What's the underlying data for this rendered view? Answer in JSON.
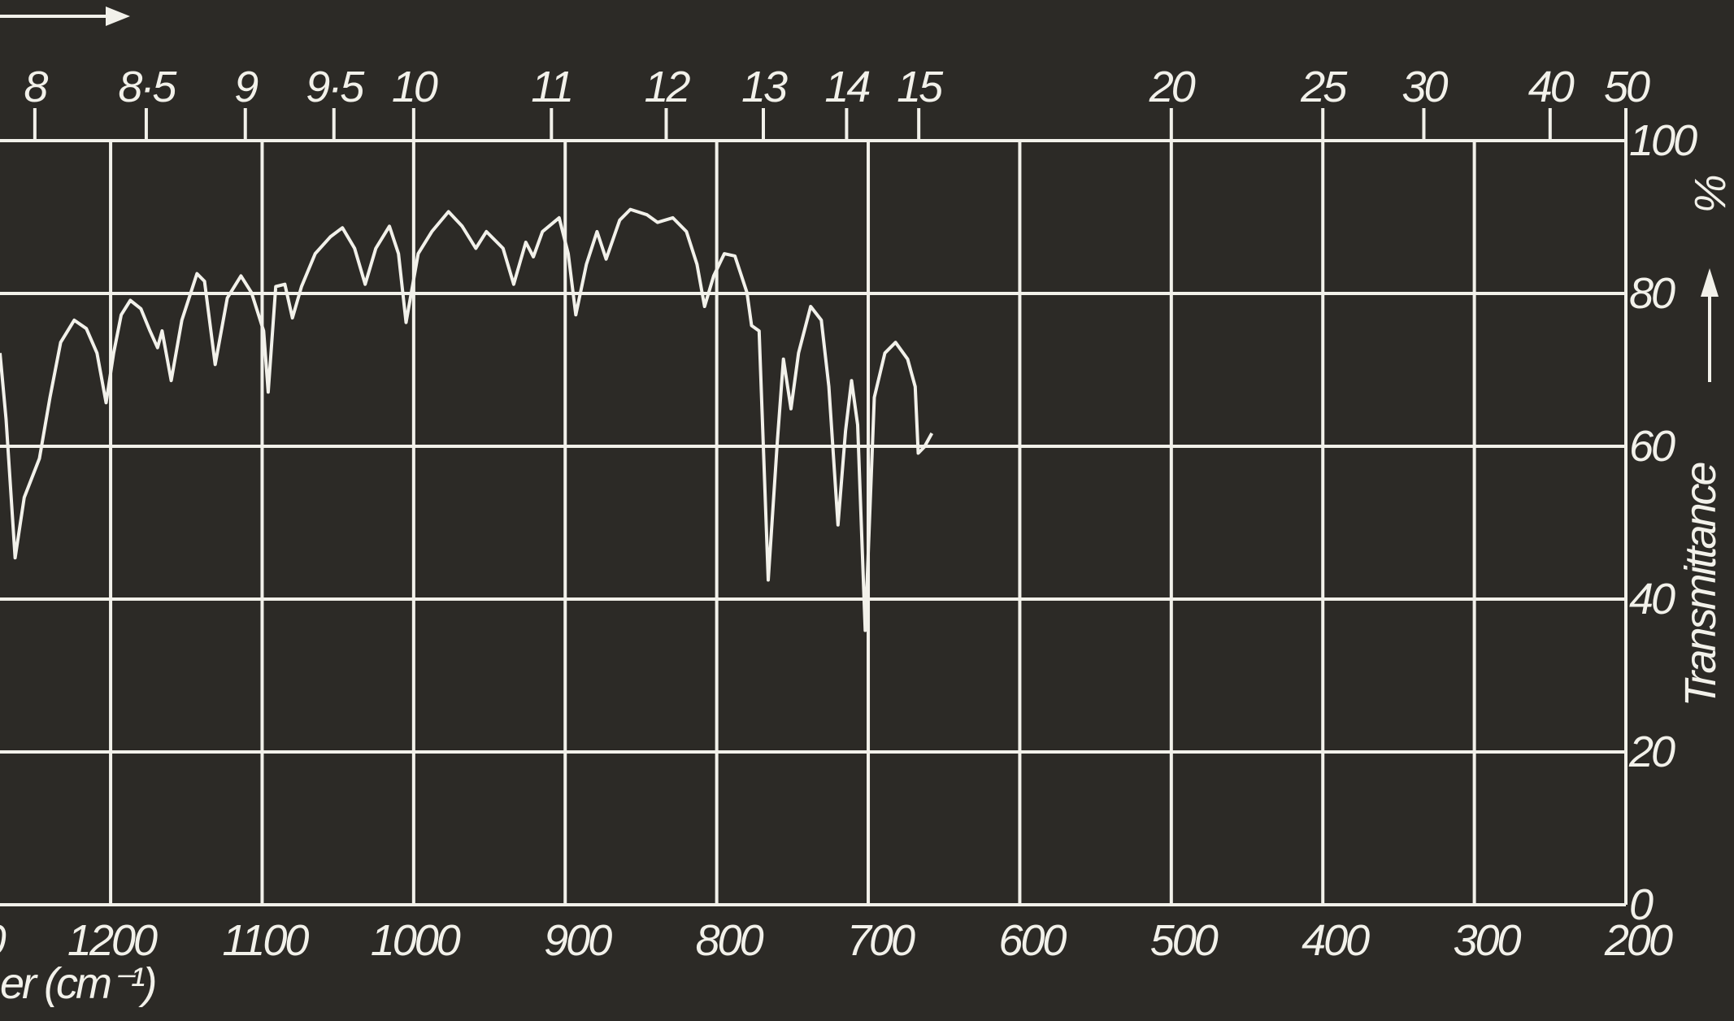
{
  "chart_data": {
    "type": "line",
    "x_label": "er (cm⁻¹)",
    "y_label": "Transmittance",
    "y_unit": "%",
    "x": [
      1273,
      1269,
      1263,
      1257,
      1247,
      1240,
      1233,
      1224,
      1216,
      1209,
      1203,
      1198,
      1193,
      1187,
      1180,
      1174,
      1169,
      1166,
      1160,
      1153,
      1143,
      1138,
      1131,
      1123,
      1114,
      1107,
      1099,
      1096,
      1091,
      1085,
      1080,
      1074,
      1065,
      1055,
      1047,
      1039,
      1032,
      1025,
      1016,
      1010,
      1005,
      997,
      988,
      977,
      968,
      959,
      952,
      941,
      934,
      926,
      921,
      915,
      904,
      898,
      893,
      886,
      879,
      873,
      864,
      857,
      846,
      839,
      829,
      820,
      813,
      808,
      802,
      795,
      788,
      780,
      777,
      772,
      766,
      760,
      756,
      751,
      746,
      738,
      731,
      726,
      720,
      715,
      711,
      707,
      702,
      696,
      689,
      682,
      674,
      669,
      667,
      663,
      658
    ],
    "series": [
      {
        "color": "#f2f1ea",
        "values": [
          72.2,
          63.5,
          45.4,
          53.3,
          58.4,
          66.4,
          73.6,
          76.5,
          75.4,
          72.2,
          65.7,
          72.2,
          77.2,
          79.1,
          78.0,
          75.1,
          72.9,
          75.1,
          68.6,
          76.5,
          82.6,
          81.6,
          70.7,
          79.4,
          82.3,
          80.1,
          75.1,
          67.1,
          80.9,
          81.2,
          76.8,
          80.9,
          85.2,
          87.4,
          88.6,
          85.9,
          81.2,
          85.9,
          88.8,
          85.2,
          76.2,
          85.2,
          88.1,
          90.7,
          88.8,
          85.9,
          88.1,
          85.9,
          81.2,
          86.7,
          84.8,
          88.1,
          89.9,
          85.2,
          77.2,
          83.8,
          88.1,
          84.5,
          89.6,
          91.0,
          90.3,
          89.3,
          89.9,
          88.1,
          83.8,
          78.3,
          82.3,
          85.2,
          84.9,
          80.1,
          75.8,
          75.1,
          42.5,
          60.6,
          71.4,
          64.9,
          72.2,
          78.3,
          76.5,
          67.8,
          49.7,
          62.0,
          68.6,
          62.8,
          35.9,
          66.4,
          72.2,
          73.6,
          71.4,
          67.8,
          59.1,
          59.9,
          61.7
        ]
      }
    ],
    "xlim": [
      1273,
      200
    ],
    "xticks": [
      {
        "value": 1300,
        "label": "0"
      },
      1200,
      1100,
      1000,
      900,
      800,
      700,
      600,
      500,
      400,
      300,
      200
    ],
    "x2ticks": [
      8,
      {
        "value": 8.5,
        "label": "8·5"
      },
      9,
      {
        "value": 9.5,
        "label": "9·5"
      },
      10,
      11,
      12,
      13,
      14,
      15,
      20,
      25,
      30,
      40,
      50
    ],
    "ylim": [
      0,
      100
    ],
    "yticks": [
      0,
      20,
      40,
      60,
      80,
      100
    ],
    "grid": true
  }
}
